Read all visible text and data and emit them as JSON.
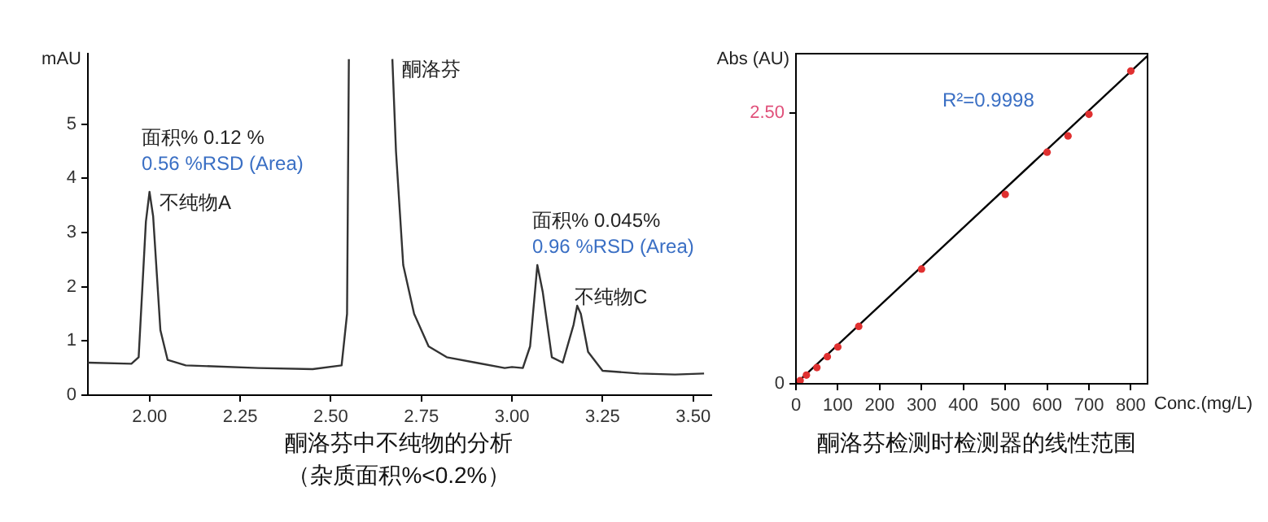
{
  "chart_data": [
    {
      "type": "line",
      "title": "酮洛芬中不纯物的分析",
      "subtitle": "（杂质面积%<0.2%）",
      "ylabel": "mAU",
      "color": "#333333",
      "x": [
        1.83,
        1.95,
        1.97,
        1.99,
        2.0,
        2.01,
        2.03,
        2.05,
        2.1,
        2.3,
        2.45,
        2.53,
        2.545,
        2.55,
        2.61,
        2.67,
        2.68,
        2.7,
        2.73,
        2.77,
        2.82,
        2.9,
        2.98,
        3.0,
        3.03,
        3.05,
        3.07,
        3.085,
        3.11,
        3.14,
        3.17,
        3.18,
        3.19,
        3.21,
        3.25,
        3.35,
        3.45,
        3.53
      ],
      "values": [
        0.6,
        0.58,
        0.7,
        3.2,
        3.75,
        3.3,
        1.2,
        0.65,
        0.55,
        0.5,
        0.48,
        0.55,
        1.5,
        6.2,
        null,
        6.2,
        4.5,
        2.4,
        1.5,
        0.9,
        0.7,
        0.6,
        0.5,
        0.52,
        0.5,
        0.9,
        2.4,
        1.9,
        0.7,
        0.6,
        1.3,
        1.65,
        1.5,
        0.8,
        0.45,
        0.4,
        0.38,
        0.4
      ],
      "xlim": [
        1.83,
        3.55
      ],
      "ylim": [
        0,
        6.3
      ],
      "xticks": [
        {
          "value": 2,
          "label": "2.00"
        },
        {
          "value": 2.25,
          "label": "2.25"
        },
        {
          "value": 2.5,
          "label": "2.50"
        },
        {
          "value": 2.75,
          "label": "2.75"
        },
        {
          "value": 3,
          "label": "3.00"
        },
        {
          "value": 3.25,
          "label": "3.25"
        },
        {
          "value": 3.5,
          "label": "3.50"
        }
      ],
      "yticks": [
        0,
        1,
        2,
        3,
        4,
        5
      ],
      "annotations": [
        "面积% 0.12 %",
        "0.56 %RSD (Area)",
        "不纯物A",
        "酮洛芬",
        "面积% 0.045%",
        "0.96 %RSD (Area)",
        "不纯物C"
      ]
    },
    {
      "type": "scatter",
      "title": "酮洛芬检测时检测器的线性范围",
      "xlabel": "Conc.(mg/L)",
      "ylabel": "Abs (AU)",
      "series": [
        {
          "color": "#e03030",
          "marker": "circle",
          "x": [
            10,
            25,
            50,
            75,
            100,
            150,
            300,
            500,
            600,
            650,
            700,
            800
          ],
          "values": [
            0.03,
            0.08,
            0.15,
            0.25,
            0.34,
            0.53,
            1.06,
            1.75,
            2.14,
            2.29,
            2.49,
            2.89
          ]
        },
        {
          "type": "line",
          "color": "#000000",
          "x": [
            0,
            840
          ],
          "values": [
            0,
            3.03
          ]
        }
      ],
      "xlim": [
        0,
        840
      ],
      "ylim": [
        0,
        3.05
      ],
      "xticks": [
        0,
        100,
        200,
        300,
        400,
        500,
        600,
        700,
        800
      ],
      "yticks": [
        0,
        {
          "value": 2.5,
          "label": "2.50"
        }
      ],
      "annotations": [
        "R²=0.9998"
      ]
    }
  ]
}
